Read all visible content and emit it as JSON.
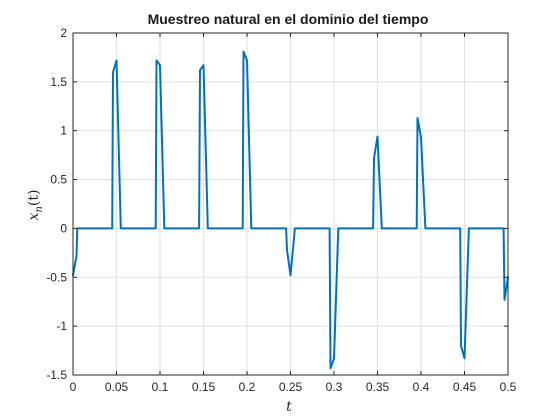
{
  "chart_data": {
    "type": "line",
    "title": "Muestreo natural en el dominio del tiempo",
    "xlabel": "t",
    "ylabel_base": "x",
    "ylabel_sub": "n",
    "ylabel_arg": "(t)",
    "xlim": [
      0,
      0.5
    ],
    "ylim": [
      -1.5,
      2
    ],
    "xticks": [
      0,
      0.05,
      0.1,
      0.15,
      0.2,
      0.25,
      0.3,
      0.35,
      0.4,
      0.45,
      0.5
    ],
    "xtick_labels": [
      "0",
      "0.05",
      "0.1",
      "0.15",
      "0.2",
      "0.25",
      "0.3",
      "0.35",
      "0.4",
      "0.45",
      "0.5"
    ],
    "yticks": [
      -1.5,
      -1,
      -0.5,
      0,
      0.5,
      1,
      1.5,
      2
    ],
    "ytick_labels": [
      "-1.5",
      "-1",
      "-0.5",
      "0",
      "0.5",
      "1",
      "1.5",
      "2"
    ],
    "grid": true,
    "line_color": "#0072bd",
    "series": [
      {
        "name": "x_n(t)",
        "x": [
          0,
          0.004,
          0.005,
          0.045,
          0.046,
          0.05,
          0.055,
          0.056,
          0.095,
          0.096,
          0.1,
          0.105,
          0.106,
          0.145,
          0.146,
          0.15,
          0.155,
          0.156,
          0.195,
          0.196,
          0.2,
          0.205,
          0.206,
          0.245,
          0.246,
          0.25,
          0.255,
          0.256,
          0.295,
          0.296,
          0.3,
          0.305,
          0.306,
          0.345,
          0.346,
          0.35,
          0.355,
          0.356,
          0.395,
          0.396,
          0.4,
          0.405,
          0.406,
          0.445,
          0.446,
          0.45,
          0.455,
          0.456,
          0.495,
          0.496,
          0.5
        ],
        "y": [
          -0.48,
          -0.28,
          0,
          0,
          1.6,
          1.72,
          0,
          0,
          0,
          1.72,
          1.67,
          0,
          0,
          0,
          1.62,
          1.67,
          0,
          0,
          0,
          1.81,
          1.72,
          0,
          0,
          0,
          -0.22,
          -0.48,
          0,
          0,
          0,
          -1.43,
          -1.33,
          0,
          0,
          0,
          0.72,
          0.94,
          0,
          0,
          0,
          1.13,
          0.93,
          0,
          0,
          0,
          -1.2,
          -1.33,
          0,
          0,
          0,
          -0.73,
          -0.5
        ]
      }
    ]
  }
}
